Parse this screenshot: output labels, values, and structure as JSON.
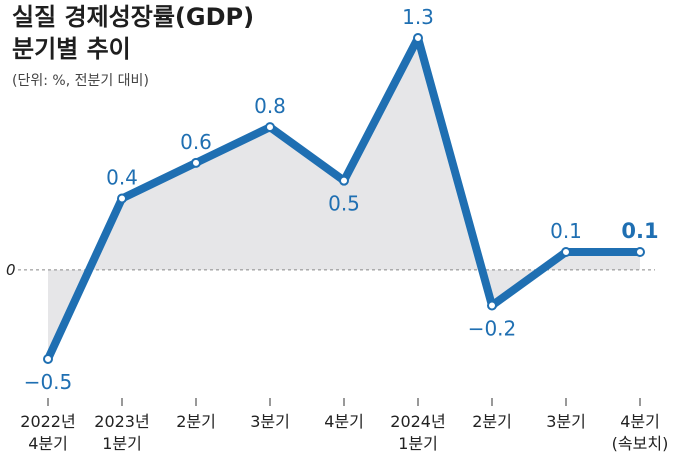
{
  "chart_data": {
    "type": "line",
    "title": "실질 경제성장률(GDP)",
    "subtitle": "분기별 추이",
    "unit_note": "(단위: %, 전분기 대비)",
    "zero_label": "0",
    "categories": [
      [
        "2022년",
        "4분기"
      ],
      [
        "2023년",
        "1분기"
      ],
      [
        "2분기"
      ],
      [
        "3분기"
      ],
      [
        "4분기"
      ],
      [
        "2024년",
        "1분기"
      ],
      [
        "2분기"
      ],
      [
        "3분기"
      ],
      [
        "4분기",
        "(속보치)"
      ]
    ],
    "values": [
      -0.5,
      0.4,
      0.6,
      0.8,
      0.5,
      1.3,
      -0.2,
      0.1,
      0.1
    ],
    "value_labels": [
      "−0.5",
      "0.4",
      "0.6",
      "0.8",
      "0.5",
      "1.3",
      "−0.2",
      "0.1",
      "0.1"
    ],
    "ylim": [
      -0.5,
      1.3
    ],
    "colors": {
      "line": "#1f6fb2",
      "area": "#e6e6e8",
      "text": "#1f6fb2"
    }
  }
}
